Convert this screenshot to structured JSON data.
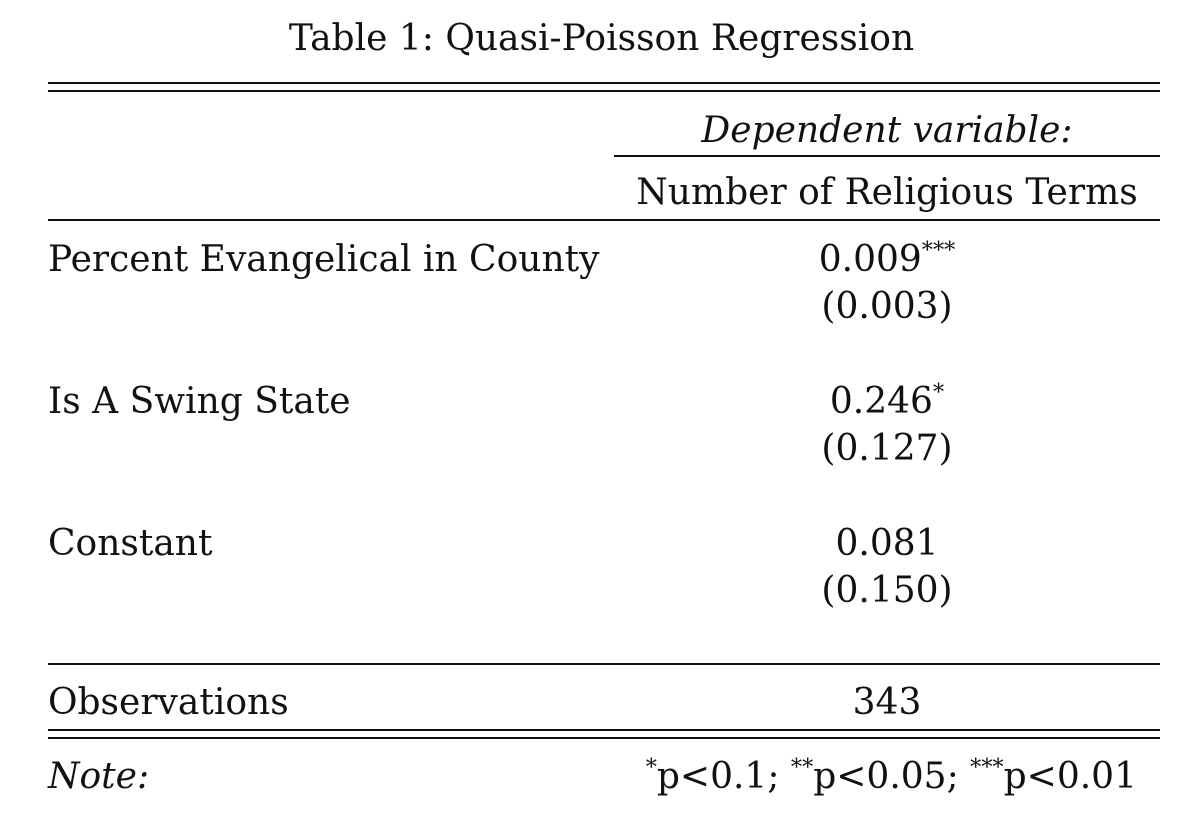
{
  "table": {
    "title": "Table 1: Quasi-Poisson Regression",
    "dependent_variable_header": "Dependent variable:",
    "dependent_variable_name": "Number of Religious Terms",
    "rows": [
      {
        "label": "Percent Evangelical in County",
        "coef": "0.009",
        "stars": "***",
        "se": "(0.003)"
      },
      {
        "label": "Is A Swing State",
        "coef": "0.246",
        "stars": "*",
        "se": "(0.127)"
      },
      {
        "label": "Constant",
        "coef": "0.081",
        "stars": "",
        "se": "(0.150)"
      }
    ],
    "observations_label": "Observations",
    "observations_value": "343",
    "note_label": "Note:",
    "note": {
      "star1": "*",
      "p1": "p<0.1; ",
      "star2": "**",
      "p2": "p<0.05; ",
      "star3": "***",
      "p3": "p<0.01"
    }
  }
}
